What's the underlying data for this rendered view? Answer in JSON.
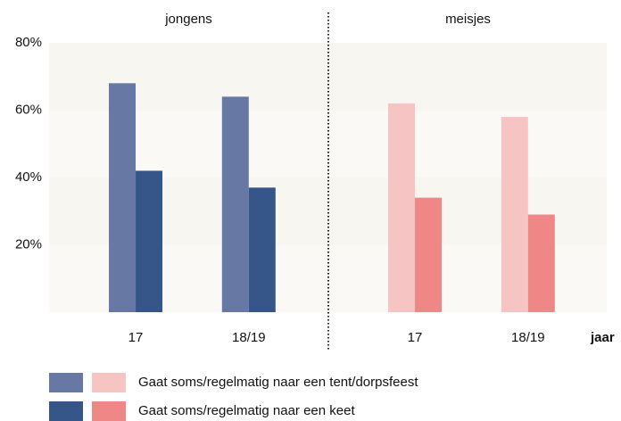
{
  "chart_data": {
    "type": "bar",
    "panels": [
      "jongens",
      "meisjes"
    ],
    "categories": [
      "17",
      "18/19"
    ],
    "x_label": "jaar",
    "series": [
      {
        "name": "Gaat soms/regelmatig naar een tent/dorpsfeest",
        "colors": [
          "#6678a3",
          "#f5c4c3"
        ],
        "values": [
          [
            68,
            64
          ],
          [
            62,
            58
          ]
        ]
      },
      {
        "name": "Gaat soms/regelmatig naar een keet",
        "colors": [
          "#36568a",
          "#ee8786"
        ],
        "values": [
          [
            42,
            37
          ],
          [
            34,
            29
          ]
        ]
      }
    ],
    "ylim": [
      0,
      80
    ],
    "yticks": [
      {
        "value": 20,
        "label": "20%"
      },
      {
        "value": 40,
        "label": "40%"
      },
      {
        "value": 60,
        "label": "60%"
      },
      {
        "value": 80,
        "label": "80%"
      }
    ],
    "grid": true
  }
}
